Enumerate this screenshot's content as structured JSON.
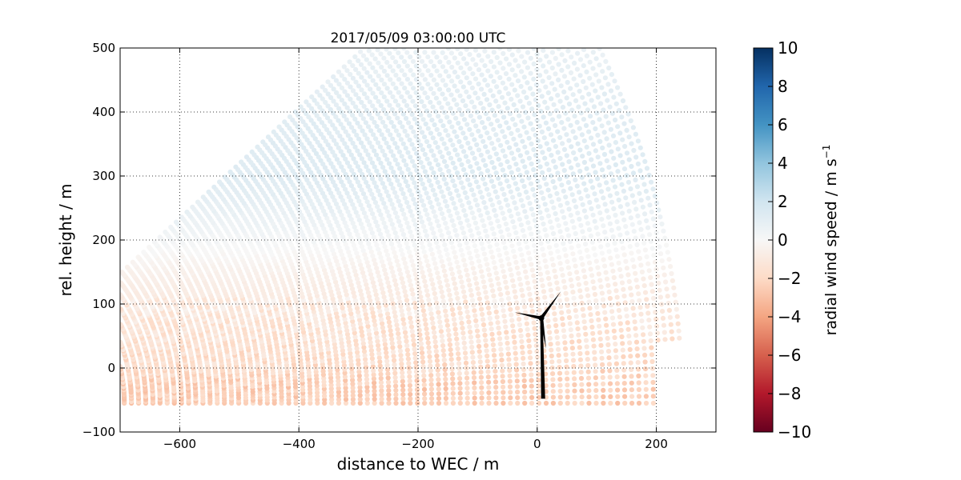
{
  "chart_data": {
    "type": "scatter",
    "title": "2017/05/09 03:00:00 UTC",
    "xlabel": "distance to WEC / m",
    "ylabel": "rel. height / m",
    "xlim": [
      -700,
      300
    ],
    "ylim": [
      -100,
      500
    ],
    "x_ticks": [
      -600,
      -400,
      -200,
      0,
      200
    ],
    "y_ticks": [
      -100,
      0,
      100,
      200,
      300,
      400,
      500
    ],
    "x_tick_labels": [
      "−600",
      "−400",
      "−200",
      "0",
      "200"
    ],
    "y_tick_labels": [
      "−100",
      "0",
      "100",
      "200",
      "300",
      "400",
      "500"
    ],
    "grid": true,
    "scan_geometry": {
      "origin": [
        -935,
        -55
      ],
      "range_min": 230,
      "range_max": 1180,
      "range_step": 12,
      "elevation_min_deg": 0,
      "elevation_max_deg": 41,
      "elevation_step_deg": 0.55
    },
    "wind_profile": [
      {
        "height": -25,
        "speed": -2.4
      },
      {
        "height": 0,
        "speed": -1.8
      },
      {
        "height": 60,
        "speed": -1.4
      },
      {
        "height": 100,
        "speed": -1.0
      },
      {
        "height": 150,
        "speed": -0.5
      },
      {
        "height": 200,
        "speed": 0.2
      },
      {
        "height": 250,
        "speed": 0.8
      },
      {
        "height": 300,
        "speed": 1.3
      },
      {
        "height": 400,
        "speed": 1.1
      },
      {
        "height": 500,
        "speed": 0.7
      }
    ],
    "wind_turbine": {
      "tower_base": [
        10,
        -48
      ],
      "hub": [
        7,
        78
      ],
      "blade_tips": [
        [
          40,
          120
        ],
        [
          -38,
          87
        ],
        [
          15,
          30
        ]
      ]
    },
    "colorbar": {
      "label": "radial wind speed / m s",
      "label_superscript": "−1",
      "cmap": "RdBu",
      "vmin": -10,
      "vmax": 10,
      "ticks": [
        10,
        8,
        6,
        4,
        2,
        0,
        -2,
        -4,
        -6,
        -8,
        -10
      ],
      "tick_labels": [
        "10",
        "8",
        "6",
        "4",
        "2",
        "0",
        "−2",
        "−4",
        "−6",
        "−8",
        "−10"
      ],
      "stops": [
        {
          "v": -10,
          "color": "#67001f"
        },
        {
          "v": -8,
          "color": "#b2182b"
        },
        {
          "v": -6,
          "color": "#d6604d"
        },
        {
          "v": -4,
          "color": "#f4a582"
        },
        {
          "v": -2,
          "color": "#fddbc7"
        },
        {
          "v": 0,
          "color": "#f7f7f7"
        },
        {
          "v": 2,
          "color": "#d1e5f0"
        },
        {
          "v": 4,
          "color": "#92c5de"
        },
        {
          "v": 6,
          "color": "#4393c3"
        },
        {
          "v": 8,
          "color": "#2166ac"
        },
        {
          "v": 10,
          "color": "#053061"
        }
      ]
    }
  }
}
